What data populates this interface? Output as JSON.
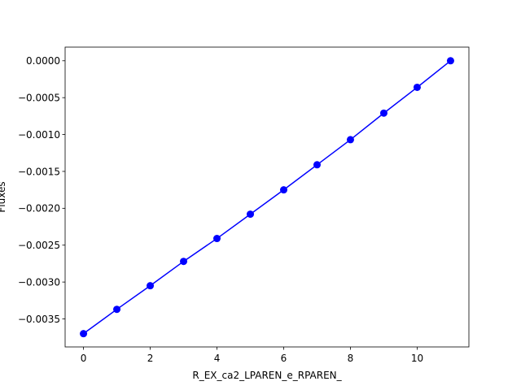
{
  "chart_data": {
    "type": "line",
    "title": "",
    "xlabel": "R_EX_ca2_LPAREN_e_RPAREN_",
    "ylabel": "Fluxes",
    "x": [
      0,
      1,
      2,
      3,
      4,
      5,
      6,
      7,
      8,
      9,
      10,
      11
    ],
    "series": [
      {
        "values": [
          -0.0037,
          -0.00337,
          -0.00305,
          -0.00272,
          -0.00241,
          -0.00208,
          -0.00175,
          -0.00141,
          -0.00107,
          -0.00071,
          -0.00036,
          0.0
        ],
        "color": "#0000ff",
        "marker": "circle"
      }
    ],
    "xlim": [
      -0.55,
      11.55
    ],
    "ylim": [
      -0.00388,
      0.000185
    ],
    "xticks": [
      0,
      2,
      4,
      6,
      8,
      10
    ],
    "xtick_labels": [
      "0",
      "2",
      "4",
      "6",
      "8",
      "10"
    ],
    "yticks": [
      0.0,
      -0.0005,
      -0.001,
      -0.0015,
      -0.002,
      -0.0025,
      -0.003,
      -0.0035
    ],
    "ytick_labels": [
      "0.0000",
      "−0.0005",
      "−0.0010",
      "−0.0015",
      "−0.0020",
      "−0.0025",
      "−0.0030",
      "−0.0035"
    ],
    "grid": false,
    "legend": "none"
  }
}
